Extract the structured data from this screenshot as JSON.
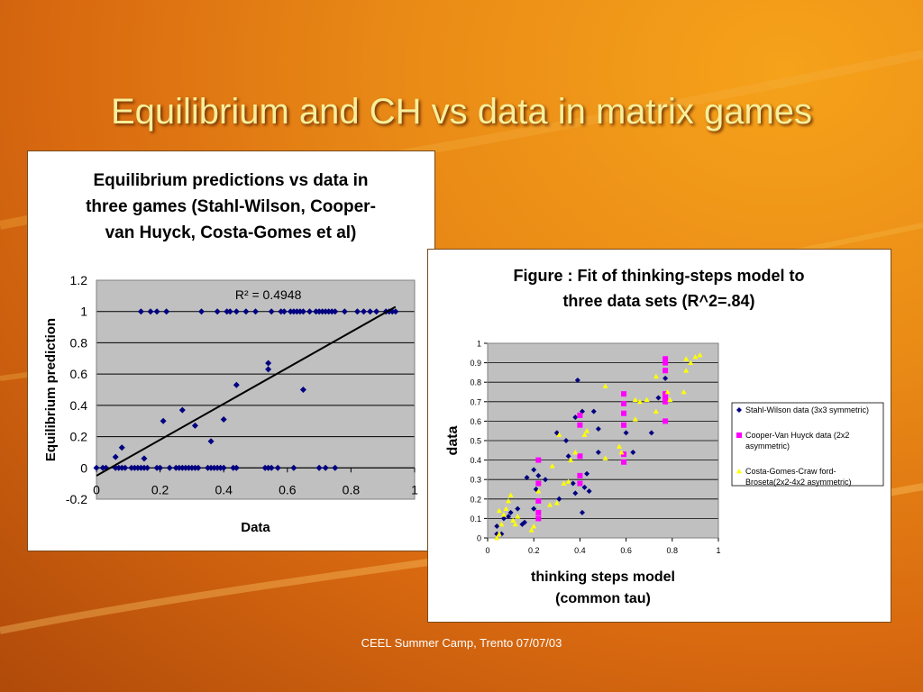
{
  "slide": {
    "title": "Equilibrium and CH vs data in matrix games",
    "footer": "CEEL Summer Camp, Trento 07/07/03"
  },
  "colors": {
    "title": "#f7ee9a",
    "plot_area": "#c0c0c0",
    "series_blue": "#000080",
    "series_magenta": "#ff00ff",
    "series_yellow": "#ffff00",
    "trendline": "#000000"
  },
  "chart_data": [
    {
      "type": "scatter",
      "title_lines": [
        "Equilibrium predictions vs data in",
        "three games (Stahl-Wilson, Cooper-",
        "van Huyck, Costa-Gomes et al)"
      ],
      "xlabel": "Data",
      "ylabel": "Equilibrium prediction",
      "xlim": [
        0,
        1
      ],
      "ylim": [
        -0.2,
        1.2
      ],
      "xticks": [
        0,
        0.2,
        0.4,
        0.6,
        0.8,
        1
      ],
      "xtick_labels": [
        "0",
        "0.2",
        "0.4",
        "0.6",
        "0.8",
        "1"
      ],
      "yticks": [
        -0.2,
        0,
        0.2,
        0.4,
        0.6,
        0.8,
        1,
        1.2
      ],
      "ytick_labels": [
        "-0.2",
        "0",
        "0.2",
        "0.4",
        "0.6",
        "0.8",
        "1",
        "1.2"
      ],
      "grid": true,
      "annotation": "R² = 0.4948",
      "trendline": [
        [
          0,
          -0.05
        ],
        [
          0.94,
          1.03
        ]
      ],
      "series": [
        {
          "marker": "diamond",
          "color": "#000080",
          "points": [
            [
              0.0,
              0
            ],
            [
              0.02,
              0
            ],
            [
              0.03,
              0
            ],
            [
              0.06,
              0
            ],
            [
              0.07,
              0
            ],
            [
              0.08,
              0
            ],
            [
              0.09,
              0
            ],
            [
              0.11,
              0
            ],
            [
              0.12,
              0
            ],
            [
              0.13,
              0
            ],
            [
              0.14,
              0
            ],
            [
              0.15,
              0
            ],
            [
              0.16,
              0
            ],
            [
              0.19,
              0
            ],
            [
              0.2,
              0
            ],
            [
              0.23,
              0
            ],
            [
              0.25,
              0
            ],
            [
              0.26,
              0
            ],
            [
              0.27,
              0
            ],
            [
              0.28,
              0
            ],
            [
              0.29,
              0
            ],
            [
              0.3,
              0
            ],
            [
              0.31,
              0
            ],
            [
              0.32,
              0
            ],
            [
              0.35,
              0
            ],
            [
              0.36,
              0
            ],
            [
              0.37,
              0
            ],
            [
              0.38,
              0
            ],
            [
              0.39,
              0
            ],
            [
              0.4,
              0
            ],
            [
              0.43,
              0
            ],
            [
              0.44,
              0
            ],
            [
              0.53,
              0
            ],
            [
              0.54,
              0
            ],
            [
              0.55,
              0
            ],
            [
              0.57,
              0
            ],
            [
              0.62,
              0
            ],
            [
              0.7,
              0
            ],
            [
              0.72,
              0
            ],
            [
              0.75,
              0
            ],
            [
              0.06,
              0.07
            ],
            [
              0.08,
              0.13
            ],
            [
              0.15,
              0.06
            ],
            [
              0.21,
              0.3
            ],
            [
              0.27,
              0.37
            ],
            [
              0.31,
              0.27
            ],
            [
              0.36,
              0.17
            ],
            [
              0.4,
              0.31
            ],
            [
              0.44,
              0.53
            ],
            [
              0.54,
              0.67
            ],
            [
              0.54,
              0.63
            ],
            [
              0.65,
              0.5
            ],
            [
              0.14,
              1
            ],
            [
              0.17,
              1
            ],
            [
              0.19,
              1
            ],
            [
              0.22,
              1
            ],
            [
              0.33,
              1
            ],
            [
              0.38,
              1
            ],
            [
              0.41,
              1
            ],
            [
              0.42,
              1
            ],
            [
              0.44,
              1
            ],
            [
              0.47,
              1
            ],
            [
              0.5,
              1
            ],
            [
              0.55,
              1
            ],
            [
              0.58,
              1
            ],
            [
              0.59,
              1
            ],
            [
              0.61,
              1
            ],
            [
              0.62,
              1
            ],
            [
              0.63,
              1
            ],
            [
              0.64,
              1
            ],
            [
              0.65,
              1
            ],
            [
              0.67,
              1
            ],
            [
              0.69,
              1
            ],
            [
              0.7,
              1
            ],
            [
              0.71,
              1
            ],
            [
              0.72,
              1
            ],
            [
              0.73,
              1
            ],
            [
              0.74,
              1
            ],
            [
              0.75,
              1
            ],
            [
              0.78,
              1
            ],
            [
              0.82,
              1
            ],
            [
              0.84,
              1
            ],
            [
              0.86,
              1
            ],
            [
              0.88,
              1
            ],
            [
              0.91,
              1
            ],
            [
              0.92,
              1
            ],
            [
              0.93,
              1
            ],
            [
              0.94,
              1
            ]
          ]
        }
      ]
    },
    {
      "type": "scatter",
      "title_lines": [
        "Figure : Fit of thinking-steps model to",
        "three data sets (R^2=.84)"
      ],
      "xlabel_lines": [
        "thinking steps model",
        "(common tau)"
      ],
      "ylabel": "data",
      "xlim": [
        0,
        1
      ],
      "ylim": [
        0,
        1
      ],
      "xticks": [
        0,
        0.2,
        0.4,
        0.6,
        0.8,
        1
      ],
      "xtick_labels": [
        "0",
        "0.2",
        "0.4",
        "0.6",
        "0.8",
        "1"
      ],
      "yticks": [
        0,
        0.1,
        0.2,
        0.3,
        0.4,
        0.5,
        0.6,
        0.7,
        0.8,
        0.9,
        1
      ],
      "ytick_labels": [
        "0",
        "0.1",
        "0.2",
        "0.3",
        "0.4",
        "0.5",
        "0.6",
        "0.7",
        "0.8",
        "0.9",
        "1"
      ],
      "grid": true,
      "legend_position": "right",
      "series": [
        {
          "name_lines": [
            "Stahl-Wilson data (3x3 symmetric)"
          ],
          "marker": "diamond",
          "color": "#000080",
          "points": [
            [
              0.04,
              0.06
            ],
            [
              0.04,
              0.02
            ],
            [
              0.06,
              0.02
            ],
            [
              0.07,
              0.1
            ],
            [
              0.09,
              0.11
            ],
            [
              0.1,
              0.13
            ],
            [
              0.13,
              0.15
            ],
            [
              0.15,
              0.07
            ],
            [
              0.16,
              0.08
            ],
            [
              0.17,
              0.31
            ],
            [
              0.2,
              0.15
            ],
            [
              0.2,
              0.35
            ],
            [
              0.21,
              0.25
            ],
            [
              0.22,
              0.32
            ],
            [
              0.25,
              0.3
            ],
            [
              0.3,
              0.54
            ],
            [
              0.31,
              0.2
            ],
            [
              0.34,
              0.5
            ],
            [
              0.35,
              0.42
            ],
            [
              0.37,
              0.28
            ],
            [
              0.38,
              0.23
            ],
            [
              0.38,
              0.62
            ],
            [
              0.39,
              0.81
            ],
            [
              0.41,
              0.13
            ],
            [
              0.41,
              0.65
            ],
            [
              0.42,
              0.26
            ],
            [
              0.43,
              0.33
            ],
            [
              0.44,
              0.24
            ],
            [
              0.46,
              0.65
            ],
            [
              0.48,
              0.44
            ],
            [
              0.48,
              0.56
            ],
            [
              0.6,
              0.54
            ],
            [
              0.63,
              0.44
            ],
            [
              0.71,
              0.54
            ],
            [
              0.74,
              0.72
            ],
            [
              0.77,
              0.82
            ]
          ]
        },
        {
          "name_lines": [
            "Cooper-Van Huyck data (2x2",
            "asymmetric)"
          ],
          "marker": "square",
          "color": "#ff00ff",
          "points": [
            [
              0.22,
              0.1
            ],
            [
              0.22,
              0.13
            ],
            [
              0.22,
              0.19
            ],
            [
              0.22,
              0.28
            ],
            [
              0.22,
              0.4
            ],
            [
              0.4,
              0.28
            ],
            [
              0.4,
              0.32
            ],
            [
              0.4,
              0.42
            ],
            [
              0.4,
              0.58
            ],
            [
              0.4,
              0.63
            ],
            [
              0.59,
              0.39
            ],
            [
              0.59,
              0.43
            ],
            [
              0.59,
              0.58
            ],
            [
              0.59,
              0.64
            ],
            [
              0.59,
              0.69
            ],
            [
              0.59,
              0.74
            ],
            [
              0.77,
              0.6
            ],
            [
              0.77,
              0.7
            ],
            [
              0.77,
              0.72
            ],
            [
              0.77,
              0.74
            ],
            [
              0.77,
              0.86
            ],
            [
              0.77,
              0.9
            ],
            [
              0.77,
              0.92
            ]
          ]
        },
        {
          "name_lines": [
            "Costa-Gomes-Craw ford-",
            "Broseta(2x2-4x2 asymmetric)"
          ],
          "marker": "triangle",
          "color": "#ffff00",
          "points": [
            [
              0.04,
              0.0
            ],
            [
              0.05,
              0.02
            ],
            [
              0.05,
              0.14
            ],
            [
              0.06,
              0.07
            ],
            [
              0.07,
              0.12
            ],
            [
              0.08,
              0.15
            ],
            [
              0.09,
              0.19
            ],
            [
              0.1,
              0.22
            ],
            [
              0.11,
              0.09
            ],
            [
              0.12,
              0.07
            ],
            [
              0.13,
              0.11
            ],
            [
              0.19,
              0.04
            ],
            [
              0.2,
              0.06
            ],
            [
              0.22,
              0.24
            ],
            [
              0.27,
              0.17
            ],
            [
              0.28,
              0.37
            ],
            [
              0.3,
              0.18
            ],
            [
              0.31,
              0.53
            ],
            [
              0.33,
              0.28
            ],
            [
              0.35,
              0.29
            ],
            [
              0.36,
              0.4
            ],
            [
              0.38,
              0.44
            ],
            [
              0.42,
              0.53
            ],
            [
              0.43,
              0.55
            ],
            [
              0.51,
              0.41
            ],
            [
              0.51,
              0.78
            ],
            [
              0.57,
              0.47
            ],
            [
              0.58,
              0.44
            ],
            [
              0.64,
              0.61
            ],
            [
              0.64,
              0.71
            ],
            [
              0.66,
              0.7
            ],
            [
              0.69,
              0.71
            ],
            [
              0.73,
              0.65
            ],
            [
              0.73,
              0.83
            ],
            [
              0.78,
              0.75
            ],
            [
              0.79,
              0.71
            ],
            [
              0.85,
              0.75
            ],
            [
              0.86,
              0.86
            ],
            [
              0.86,
              0.92
            ],
            [
              0.88,
              0.9
            ],
            [
              0.9,
              0.93
            ],
            [
              0.92,
              0.94
            ]
          ]
        }
      ]
    }
  ]
}
